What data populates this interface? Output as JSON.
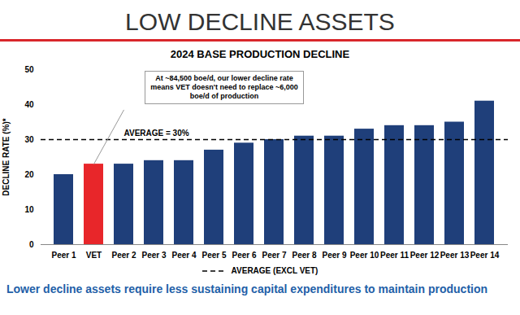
{
  "chart_data": {
    "type": "bar",
    "title": "LOW DECLINE ASSETS",
    "subtitle": "2024 BASE PRODUCTION DECLINE",
    "y_label": "DECLINE RATE (%)*",
    "categories": [
      "Peer 1",
      "VET",
      "Peer 2",
      "Peer 3",
      "Peer 4",
      "Peer 5",
      "Peer 6",
      "Peer 7",
      "Peer 8",
      "Peer 9",
      "Peer 10",
      "Peer 11",
      "Peer 12",
      "Peer 13",
      "Peer 14"
    ],
    "values": [
      20,
      23,
      23,
      24,
      24,
      27,
      29,
      30,
      31,
      31,
      33,
      34,
      34,
      35,
      41
    ],
    "colors": [
      "#1f3f7a",
      "#e8262a",
      "#1f3f7a",
      "#1f3f7a",
      "#1f3f7a",
      "#1f3f7a",
      "#1f3f7a",
      "#1f3f7a",
      "#1f3f7a",
      "#1f3f7a",
      "#1f3f7a",
      "#1f3f7a",
      "#1f3f7a",
      "#1f3f7a",
      "#1f3f7a"
    ],
    "ylim": [
      0,
      50
    ],
    "yticks": [
      0,
      10,
      20,
      30,
      40,
      50
    ],
    "grid": false,
    "reference_line": {
      "value": 30,
      "label": "AVERAGE = 30%",
      "name": "AVERAGE (EXCL VET)",
      "line_style": "dashed"
    },
    "annotation": "At ~84,500 boe/d, our lower decline rate means VET doesn't need to replace ~6,000 boe/d of production",
    "caption": "Lower decline assets require less sustaining capital expenditures to maintain production"
  }
}
